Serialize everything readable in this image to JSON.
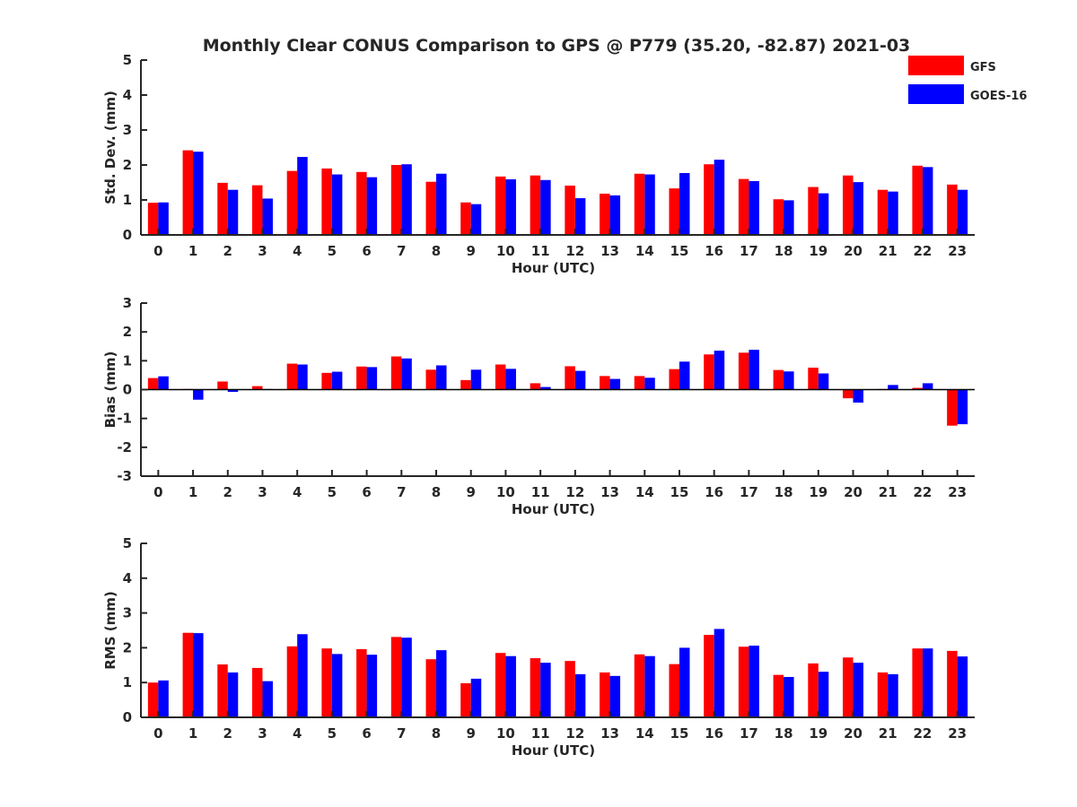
{
  "title": "Monthly Clear CONUS Comparison to GPS @ P779 (35.20, -82.87) 2021-03",
  "legend": [
    {
      "label": "GFS",
      "color": "#ff0000"
    },
    {
      "label": "GOES-16",
      "color": "#0000ff"
    }
  ],
  "chart_data": [
    {
      "type": "bar",
      "xlabel": "Hour (UTC)",
      "ylabel": "Std. Dev. (mm)",
      "ylim": [
        0,
        5
      ],
      "yticks": [
        0,
        1,
        2,
        3,
        4,
        5
      ],
      "categories": [
        "0",
        "1",
        "2",
        "3",
        "4",
        "5",
        "6",
        "7",
        "8",
        "9",
        "10",
        "11",
        "12",
        "13",
        "14",
        "15",
        "16",
        "17",
        "18",
        "19",
        "20",
        "21",
        "22",
        "23"
      ],
      "series": [
        {
          "name": "GFS",
          "values": [
            0.92,
            2.42,
            1.49,
            1.42,
            1.83,
            1.9,
            1.8,
            2.0,
            1.52,
            0.93,
            1.67,
            1.7,
            1.41,
            1.18,
            1.75,
            1.33,
            2.02,
            1.6,
            1.02,
            1.37,
            1.7,
            1.29,
            1.98,
            1.44
          ]
        },
        {
          "name": "GOES-16",
          "values": [
            0.93,
            2.38,
            1.29,
            1.04,
            2.23,
            1.73,
            1.65,
            2.02,
            1.75,
            0.88,
            1.59,
            1.57,
            1.05,
            1.13,
            1.73,
            1.77,
            2.15,
            1.54,
            0.99,
            1.19,
            1.51,
            1.24,
            1.94,
            1.29
          ]
        }
      ]
    },
    {
      "type": "bar",
      "xlabel": "Hour (UTC)",
      "ylabel": "Bias (mm)",
      "ylim": [
        -3,
        3
      ],
      "yticks": [
        -3,
        -2,
        -1,
        0,
        1,
        2,
        3
      ],
      "categories": [
        "0",
        "1",
        "2",
        "3",
        "4",
        "5",
        "6",
        "7",
        "8",
        "9",
        "10",
        "11",
        "12",
        "13",
        "14",
        "15",
        "16",
        "17",
        "18",
        "19",
        "20",
        "21",
        "22",
        "23"
      ],
      "series": [
        {
          "name": "GFS",
          "values": [
            0.4,
            0.02,
            0.28,
            0.12,
            0.9,
            0.58,
            0.8,
            1.15,
            0.69,
            0.33,
            0.87,
            0.22,
            0.81,
            0.47,
            0.47,
            0.71,
            1.22,
            1.28,
            0.68,
            0.76,
            -0.3,
            0.02,
            0.06,
            -1.25
          ]
        },
        {
          "name": "GOES-16",
          "values": [
            0.46,
            -0.35,
            -0.08,
            0.02,
            0.87,
            0.62,
            0.78,
            1.08,
            0.84,
            0.69,
            0.72,
            0.09,
            0.65,
            0.37,
            0.41,
            0.97,
            1.35,
            1.38,
            0.63,
            0.56,
            -0.45,
            0.16,
            0.22,
            -1.2
          ]
        }
      ]
    },
    {
      "type": "bar",
      "xlabel": "Hour (UTC)",
      "ylabel": "RMS (mm)",
      "ylim": [
        0,
        5
      ],
      "yticks": [
        0,
        1,
        2,
        3,
        4,
        5
      ],
      "categories": [
        "0",
        "1",
        "2",
        "3",
        "4",
        "5",
        "6",
        "7",
        "8",
        "9",
        "10",
        "11",
        "12",
        "13",
        "14",
        "15",
        "16",
        "17",
        "18",
        "19",
        "20",
        "21",
        "22",
        "23"
      ],
      "series": [
        {
          "name": "GFS",
          "values": [
            1.0,
            2.43,
            1.52,
            1.42,
            2.04,
            1.98,
            1.96,
            2.31,
            1.67,
            0.98,
            1.85,
            1.7,
            1.62,
            1.29,
            1.81,
            1.53,
            2.37,
            2.03,
            1.22,
            1.55,
            1.72,
            1.29,
            1.98,
            1.91
          ]
        },
        {
          "name": "GOES-16",
          "values": [
            1.06,
            2.42,
            1.29,
            1.04,
            2.39,
            1.82,
            1.8,
            2.29,
            1.93,
            1.11,
            1.76,
            1.57,
            1.24,
            1.19,
            1.76,
            2.0,
            2.54,
            2.06,
            1.16,
            1.31,
            1.57,
            1.24,
            1.98,
            1.75
          ]
        }
      ]
    }
  ]
}
